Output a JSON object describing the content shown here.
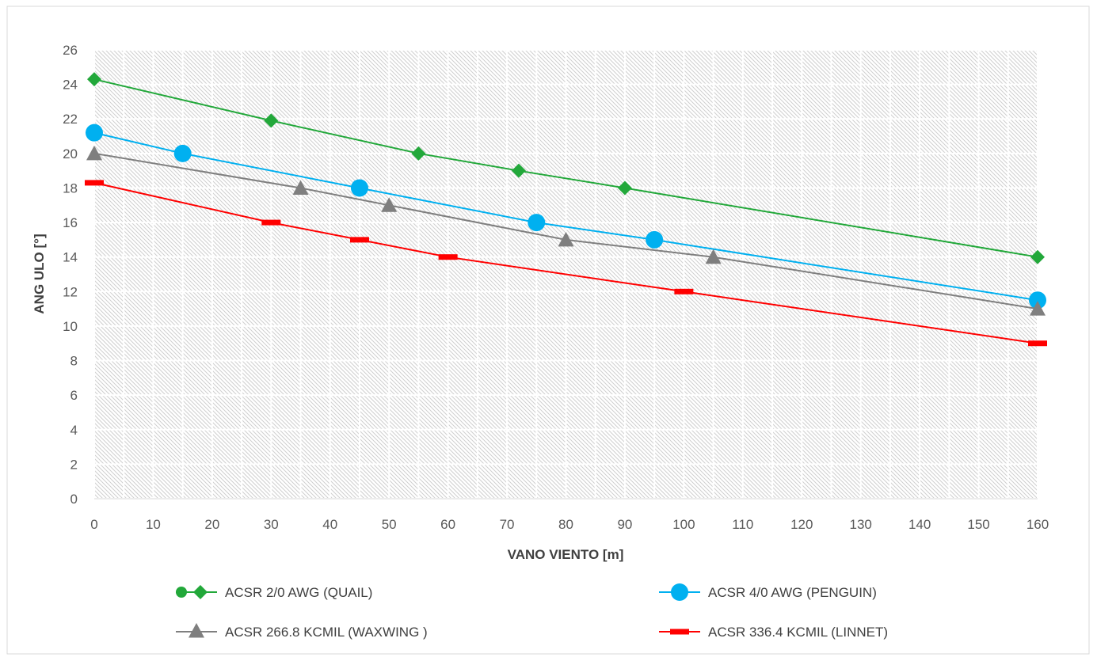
{
  "chart_data": {
    "type": "line",
    "title": "",
    "xlabel": "VANO VIENTO [m]",
    "ylabel": "ANG ULO [°]",
    "xlim": [
      0,
      160
    ],
    "ylim": [
      0,
      26
    ],
    "x_ticks": [
      0,
      10,
      20,
      30,
      40,
      50,
      60,
      70,
      80,
      90,
      100,
      110,
      120,
      130,
      140,
      150,
      160
    ],
    "y_ticks": [
      0,
      2,
      4,
      6,
      8,
      10,
      12,
      14,
      16,
      18,
      20,
      22,
      24,
      26
    ],
    "grid": true,
    "legend_position": "bottom",
    "series": [
      {
        "name": "ACSR 2/0 AWG (QUAIL)",
        "color": "#22a83a",
        "marker": "diamond",
        "points": [
          [
            0,
            24.3
          ],
          [
            30,
            21.9
          ],
          [
            55,
            20.0
          ],
          [
            72,
            19.0
          ],
          [
            90,
            18.0
          ],
          [
            160,
            14.0
          ]
        ]
      },
      {
        "name": "ACSR 4/0 AWG (PENGUIN)",
        "color": "#00b0f0",
        "marker": "circle",
        "points": [
          [
            0,
            21.2
          ],
          [
            15,
            20.0
          ],
          [
            45,
            18.0
          ],
          [
            75,
            16.0
          ],
          [
            95,
            15.0
          ],
          [
            160,
            11.5
          ]
        ]
      },
      {
        "name": "ACSR 266.8 KCMIL (WAXWING )",
        "color": "#7f7f7f",
        "marker": "triangle",
        "points": [
          [
            0,
            20.0
          ],
          [
            35,
            18.0
          ],
          [
            50,
            17.0
          ],
          [
            80,
            15.0
          ],
          [
            105,
            14.0
          ],
          [
            160,
            11.0
          ]
        ]
      },
      {
        "name": "ACSR 336.4 KCMIL (LINNET)",
        "color": "#ff0000",
        "marker": "dash",
        "points": [
          [
            0,
            18.3
          ],
          [
            30,
            16.0
          ],
          [
            45,
            15.0
          ],
          [
            60,
            14.0
          ],
          [
            100,
            12.0
          ],
          [
            160,
            9.0
          ]
        ]
      }
    ]
  }
}
